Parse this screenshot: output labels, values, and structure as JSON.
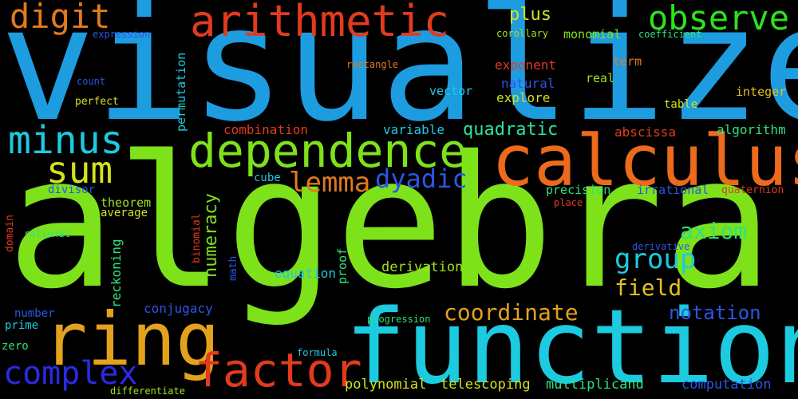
{
  "background": "#000000",
  "words": [
    {
      "text": "algebra",
      "color": "#7ee21b"
    },
    {
      "text": "visualize",
      "color": "#1e9ce0"
    },
    {
      "text": "function",
      "color": "#1ccbe0"
    },
    {
      "text": "calculus",
      "color": "#ec6a1c"
    },
    {
      "text": "ring",
      "color": "#e2a21c"
    },
    {
      "text": "dependence",
      "color": "#7ee21b"
    },
    {
      "text": "arithmetic",
      "color": "#e23a1e"
    },
    {
      "text": "factor",
      "color": "#e23a1e"
    },
    {
      "text": "observe",
      "color": "#2ee21e"
    },
    {
      "text": "minus",
      "color": "#1ccbe0"
    },
    {
      "text": "digit",
      "color": "#e27a1c"
    },
    {
      "text": "sum",
      "color": "#d4e21c"
    },
    {
      "text": "complex",
      "color": "#2a2ae6"
    },
    {
      "text": "coordinate",
      "color": "#e2a21c"
    },
    {
      "text": "group",
      "color": "#1ccbe0"
    },
    {
      "text": "lemma",
      "color": "#e27a1c"
    },
    {
      "text": "dyadic",
      "color": "#2a56e6"
    },
    {
      "text": "axiom",
      "color": "#2ee27a"
    },
    {
      "text": "field",
      "color": "#e2c21c"
    },
    {
      "text": "notation",
      "color": "#2a56e6"
    },
    {
      "text": "quadratic",
      "color": "#2ee29a"
    },
    {
      "text": "numeracy",
      "color": "#7ee21b"
    },
    {
      "text": "plus",
      "color": "#d4e21c"
    },
    {
      "text": "telescoping",
      "color": "#d4e21c"
    },
    {
      "text": "polynomial",
      "color": "#d4e21c"
    },
    {
      "text": "multiplicand",
      "color": "#2ee27a"
    },
    {
      "text": "computation",
      "color": "#2a56e6"
    },
    {
      "text": "derivation",
      "color": "#a2e21c"
    },
    {
      "text": "equation",
      "color": "#1ccbe0"
    },
    {
      "text": "reckoning",
      "color": "#2ee27a"
    },
    {
      "text": "conjugacy",
      "color": "#2a56e6"
    },
    {
      "text": "proof",
      "color": "#2ee27a"
    },
    {
      "text": "precision",
      "color": "#2ee27a"
    },
    {
      "text": "irrational",
      "color": "#2a56e6"
    },
    {
      "text": "quaternion",
      "color": "#e23a1e"
    },
    {
      "text": "combination",
      "color": "#e23a1e"
    },
    {
      "text": "variable",
      "color": "#1ccbe0"
    },
    {
      "text": "abscissa",
      "color": "#e23a1e"
    },
    {
      "text": "algorithm",
      "color": "#2ee27a"
    },
    {
      "text": "exponent",
      "color": "#e23a1e"
    },
    {
      "text": "natural",
      "color": "#2a56e6"
    },
    {
      "text": "explore",
      "color": "#d4e21c"
    },
    {
      "text": "vector",
      "color": "#1ccbe0"
    },
    {
      "text": "real",
      "color": "#a2e21c"
    },
    {
      "text": "term",
      "color": "#e27a1c"
    },
    {
      "text": "integer",
      "color": "#e2c21c"
    },
    {
      "text": "table",
      "color": "#d4e21c"
    },
    {
      "text": "monomial",
      "color": "#7ee21b"
    },
    {
      "text": "corollary",
      "color": "#a2e21c"
    },
    {
      "text": "coefficient",
      "color": "#2ee27a"
    },
    {
      "text": "rectangle",
      "color": "#e27a1c"
    },
    {
      "text": "permutation",
      "color": "#1ccbe0"
    },
    {
      "text": "theorem",
      "color": "#a2e21c"
    },
    {
      "text": "average",
      "color": "#d4e21c"
    },
    {
      "text": "binomial",
      "color": "#e23a1e"
    },
    {
      "text": "math",
      "color": "#2a56e6"
    },
    {
      "text": "cube",
      "color": "#1ccbe0"
    },
    {
      "text": "place",
      "color": "#e23a1e"
    },
    {
      "text": "derivative",
      "color": "#2a56e6"
    },
    {
      "text": "progression",
      "color": "#2ee27a"
    },
    {
      "text": "formula",
      "color": "#1ccbe0"
    },
    {
      "text": "expression",
      "color": "#2a56e6"
    },
    {
      "text": "count",
      "color": "#2a56e6"
    },
    {
      "text": "perfect",
      "color": "#d4e21c"
    },
    {
      "text": "divisor",
      "color": "#2a56e6"
    },
    {
      "text": "domain",
      "color": "#e23a1e"
    },
    {
      "text": "rational",
      "color": "#2ee27a"
    },
    {
      "text": "number",
      "color": "#2a56e6"
    },
    {
      "text": "prime",
      "color": "#1ccbe0"
    },
    {
      "text": "zero",
      "color": "#2ee27a"
    },
    {
      "text": "differentiate",
      "color": "#a2e21c"
    }
  ]
}
